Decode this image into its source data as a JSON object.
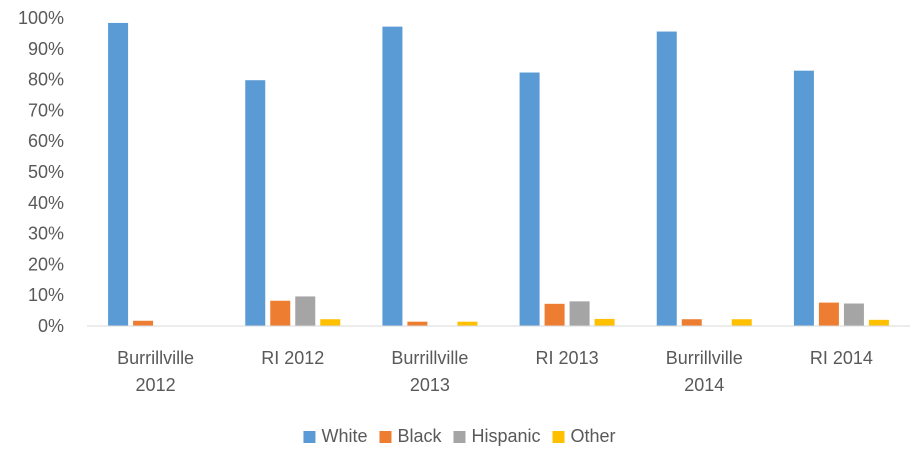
{
  "chart_data": {
    "type": "bar",
    "categories": [
      [
        "Burrillville",
        "2012"
      ],
      [
        "RI 2012"
      ],
      [
        "Burrillville",
        "2013"
      ],
      [
        "RI 2013"
      ],
      [
        "Burrillville",
        "2014"
      ],
      [
        "RI 2014"
      ]
    ],
    "series": [
      {
        "name": "White",
        "color": "#5b9bd5",
        "values": [
          98.4,
          79.8,
          97.2,
          82.3,
          95.6,
          82.9
        ]
      },
      {
        "name": "Black",
        "color": "#ed7d31",
        "values": [
          1.7,
          8.2,
          1.4,
          7.2,
          2.2,
          7.6
        ]
      },
      {
        "name": "Hispanic",
        "color": "#a5a5a5",
        "values": [
          0,
          9.6,
          0,
          8.0,
          0,
          7.3
        ]
      },
      {
        "name": "Other",
        "color": "#ffc000",
        "values": [
          0,
          2.2,
          1.4,
          2.3,
          2.2,
          2.0
        ]
      }
    ],
    "yticks": [
      "0%",
      "10%",
      "20%",
      "30%",
      "40%",
      "50%",
      "60%",
      "70%",
      "80%",
      "90%",
      "100%"
    ],
    "ylim": [
      0,
      100
    ],
    "grid": false,
    "legend_position": "bottom"
  }
}
